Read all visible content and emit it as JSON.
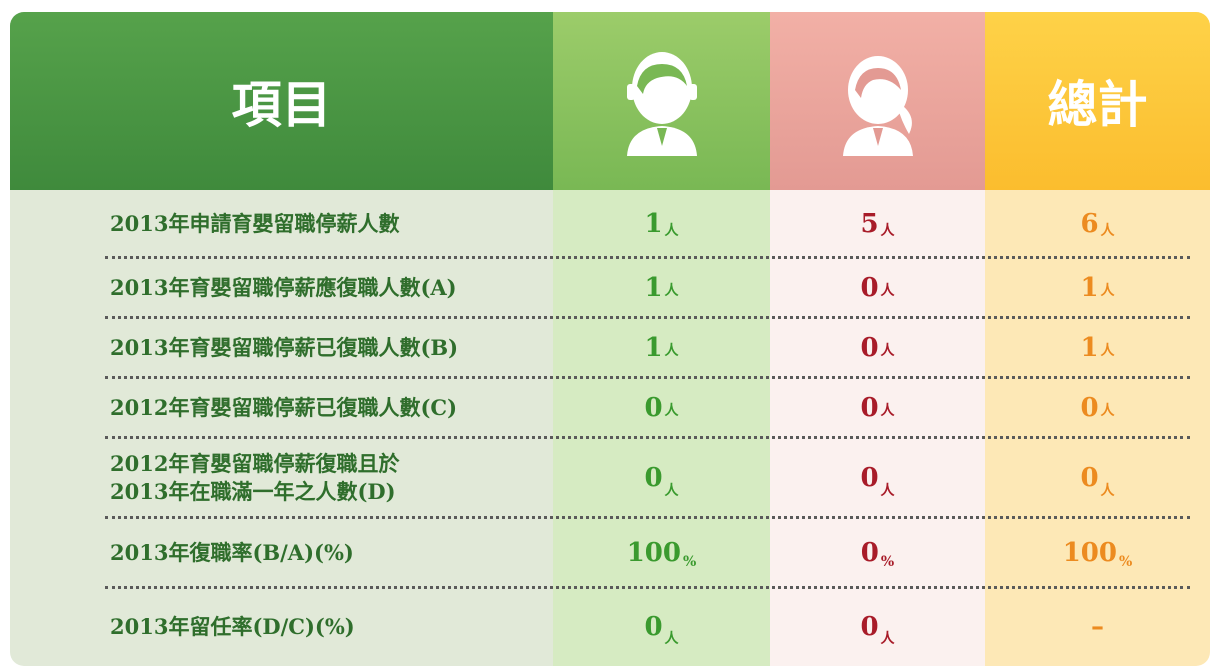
{
  "header": {
    "title": "項目",
    "total": "總計"
  },
  "table": {
    "rows": [
      {
        "label": "2013年申請育嬰留職停薪人數",
        "male": "1",
        "male_unit": "人",
        "female": "5",
        "female_unit": "人",
        "total": "6",
        "total_unit": "人"
      },
      {
        "label": "2013年育嬰留職停薪應復職人數(A)",
        "male": "1",
        "male_unit": "人",
        "female": "0",
        "female_unit": "人",
        "total": "1",
        "total_unit": "人"
      },
      {
        "label": "2013年育嬰留職停薪已復職人數(B)",
        "male": "1",
        "male_unit": "人",
        "female": "0",
        "female_unit": "人",
        "total": "1",
        "total_unit": "人"
      },
      {
        "label": "2012年育嬰留職停薪已復職人數(C)",
        "male": "0",
        "male_unit": "人",
        "female": "0",
        "female_unit": "人",
        "total": "0",
        "total_unit": "人"
      },
      {
        "label": "2012年育嬰留職停薪復職且於\n2013年在職滿一年之人數(D)",
        "male": "0",
        "male_unit": "人",
        "female": "0",
        "female_unit": "人",
        "total": "0",
        "total_unit": "人"
      },
      {
        "label": "2013年復職率(B/A)(%)",
        "male": "100",
        "male_unit": "%",
        "female": "0",
        "female_unit": "%",
        "total": "100",
        "total_unit": "%"
      },
      {
        "label": "2013年留任率(D/C)(%)",
        "male": "0",
        "male_unit": "人",
        "female": "0",
        "female_unit": "人",
        "total": "–"
      }
    ]
  }
}
